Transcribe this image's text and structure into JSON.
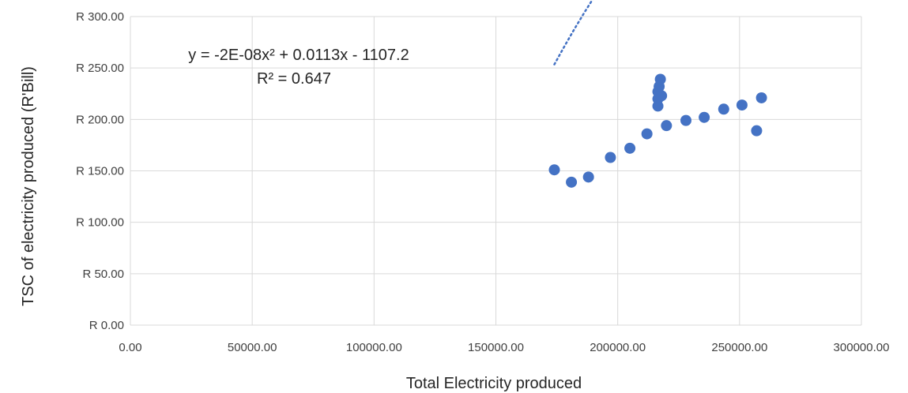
{
  "chart_data": {
    "type": "scatter",
    "xlabel": "Total Electricity produced",
    "ylabel": "TSC of electricity produced (R'Bill)",
    "xlim": [
      0,
      300000
    ],
    "ylim": [
      0,
      300
    ],
    "x_ticks": [
      "0.00",
      "50000.00",
      "100000.00",
      "150000.00",
      "200000.00",
      "250000.00",
      "300000.00"
    ],
    "y_ticks": [
      "R 0.00",
      "R 50.00",
      "R 100.00",
      "R 150.00",
      "R 200.00",
      "R 250.00",
      "R 300.00"
    ],
    "grid": true,
    "marker_color": "#4472C4",
    "trendline": {
      "type": "polynomial",
      "order": 2,
      "coefficients": [
        -2e-08,
        0.0113,
        -1107.2
      ],
      "x_range": [
        174000,
        259000
      ],
      "equation": "y = -2E-08x² + 0.0113x - 1107.2",
      "r_squared": "R² = 0.647",
      "color": "#4472C4"
    },
    "points": [
      {
        "x": 174000,
        "y": 151
      },
      {
        "x": 181000,
        "y": 139
      },
      {
        "x": 188000,
        "y": 144
      },
      {
        "x": 197000,
        "y": 163
      },
      {
        "x": 205000,
        "y": 172
      },
      {
        "x": 212000,
        "y": 186
      },
      {
        "x": 216500,
        "y": 213
      },
      {
        "x": 216500,
        "y": 220
      },
      {
        "x": 216500,
        "y": 227
      },
      {
        "x": 217000,
        "y": 232
      },
      {
        "x": 217500,
        "y": 239
      },
      {
        "x": 218000,
        "y": 223
      },
      {
        "x": 220000,
        "y": 194
      },
      {
        "x": 228000,
        "y": 199
      },
      {
        "x": 235500,
        "y": 202
      },
      {
        "x": 243500,
        "y": 210
      },
      {
        "x": 251000,
        "y": 214
      },
      {
        "x": 257000,
        "y": 189
      },
      {
        "x": 259000,
        "y": 221
      }
    ]
  }
}
